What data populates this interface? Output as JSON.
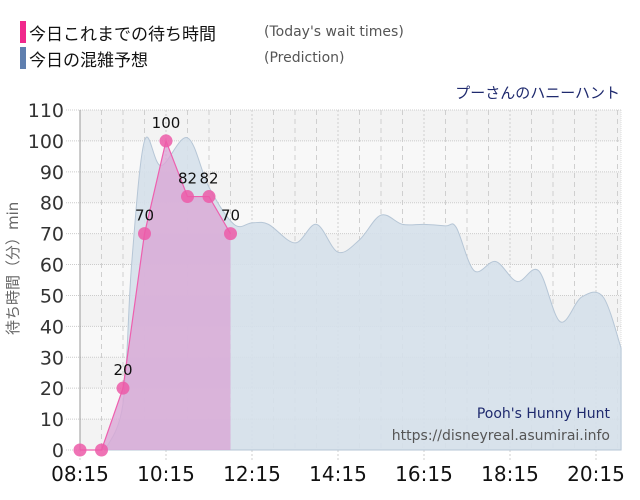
{
  "legend": [
    {
      "label_jp": "今日これまでの待ち時間",
      "label_en": "(Today's wait times)",
      "color": "#f0288c"
    },
    {
      "label_jp": "今日の混雑予想",
      "label_en": "(Prediction)",
      "color": "#5f7faf"
    }
  ],
  "attraction_jp": "プーさんのハニーハント",
  "attraction_en": "Pooh's Hunny Hunt",
  "site_url": "https://disneyreal.asumirai.info",
  "chart_data": {
    "type": "area",
    "title": "プーさんのハニーハント",
    "xlabel": "",
    "ylabel": "待ち時間（分）min",
    "ylim": [
      0,
      110
    ],
    "yticks": [
      0,
      10,
      20,
      30,
      40,
      50,
      60,
      70,
      80,
      90,
      100,
      110
    ],
    "xticks": [
      "08:15",
      "10:15",
      "12:15",
      "14:15",
      "16:15",
      "18:15",
      "20:15"
    ],
    "xlim": [
      "08:15",
      "20:50"
    ],
    "grid": true,
    "series": [
      {
        "name": "今日これまでの待ち時間 (Today's wait times)",
        "color": "#f0288c",
        "x": [
          "08:15",
          "08:45",
          "09:15",
          "09:45",
          "10:15",
          "10:45",
          "11:15",
          "11:45"
        ],
        "values": [
          0,
          0,
          20,
          70,
          100,
          82,
          82,
          70
        ],
        "labels_shown": [
          null,
          null,
          "20",
          "70",
          "100",
          "82",
          "82",
          "70"
        ]
      },
      {
        "name": "今日の混雑予想 (Prediction)",
        "color": "#5f7faf",
        "x": [
          "08:50",
          "09:15",
          "09:27",
          "09:45",
          "10:08",
          "10:45",
          "11:15",
          "11:50",
          "12:15",
          "12:38",
          "13:15",
          "13:45",
          "14:15",
          "14:45",
          "15:15",
          "15:45",
          "16:15",
          "16:45",
          "17:00",
          "17:25",
          "17:55",
          "18:25",
          "18:55",
          "19:25",
          "19:55",
          "20:25",
          "20:50"
        ],
        "values": [
          0,
          15,
          60,
          100,
          92,
          101,
          85,
          73,
          73.5,
          73,
          67,
          73,
          64,
          68,
          76,
          73,
          73,
          72.5,
          72,
          58,
          61,
          54.5,
          58,
          41.5,
          49.5,
          49.5,
          33
        ]
      }
    ]
  }
}
